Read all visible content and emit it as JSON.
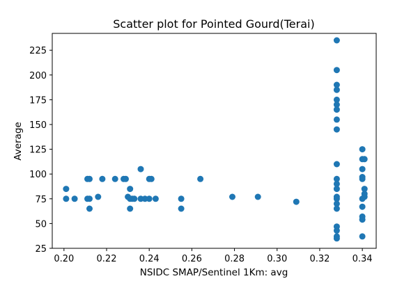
{
  "chart_data": {
    "type": "scatter",
    "title": "Scatter plot for Pointed Gourd(Terai)",
    "xlabel": "NSIDC SMAP/Sentinel 1Km: avg",
    "ylabel": "Average",
    "xlim": [
      0.1945,
      0.3465
    ],
    "ylim": [
      25,
      242
    ],
    "xticks": [
      "0.20",
      "0.22",
      "0.24",
      "0.26",
      "0.28",
      "0.30",
      "0.32",
      "0.34"
    ],
    "xtick_values": [
      0.2,
      0.22,
      0.24,
      0.26,
      0.28,
      0.3,
      0.32,
      0.34
    ],
    "yticks": [
      "25",
      "50",
      "75",
      "100",
      "125",
      "150",
      "175",
      "200",
      "225"
    ],
    "ytick_values": [
      25,
      50,
      75,
      100,
      125,
      150,
      175,
      200,
      225
    ],
    "grid": false,
    "marker_color": "#1f77b4",
    "points": [
      {
        "x": 0.201,
        "y": 85
      },
      {
        "x": 0.201,
        "y": 75
      },
      {
        "x": 0.205,
        "y": 75
      },
      {
        "x": 0.211,
        "y": 95
      },
      {
        "x": 0.212,
        "y": 95
      },
      {
        "x": 0.211,
        "y": 75
      },
      {
        "x": 0.212,
        "y": 75
      },
      {
        "x": 0.212,
        "y": 65
      },
      {
        "x": 0.216,
        "y": 77
      },
      {
        "x": 0.218,
        "y": 95
      },
      {
        "x": 0.224,
        "y": 95
      },
      {
        "x": 0.228,
        "y": 95
      },
      {
        "x": 0.229,
        "y": 95
      },
      {
        "x": 0.23,
        "y": 77
      },
      {
        "x": 0.231,
        "y": 85
      },
      {
        "x": 0.231,
        "y": 75
      },
      {
        "x": 0.232,
        "y": 75
      },
      {
        "x": 0.231,
        "y": 65
      },
      {
        "x": 0.233,
        "y": 75
      },
      {
        "x": 0.236,
        "y": 105
      },
      {
        "x": 0.236,
        "y": 75
      },
      {
        "x": 0.238,
        "y": 75
      },
      {
        "x": 0.24,
        "y": 95
      },
      {
        "x": 0.241,
        "y": 95
      },
      {
        "x": 0.24,
        "y": 75
      },
      {
        "x": 0.243,
        "y": 75
      },
      {
        "x": 0.255,
        "y": 75
      },
      {
        "x": 0.255,
        "y": 65
      },
      {
        "x": 0.264,
        "y": 95
      },
      {
        "x": 0.279,
        "y": 77
      },
      {
        "x": 0.291,
        "y": 77
      },
      {
        "x": 0.309,
        "y": 72
      },
      {
        "x": 0.328,
        "y": 235
      },
      {
        "x": 0.328,
        "y": 205
      },
      {
        "x": 0.328,
        "y": 190
      },
      {
        "x": 0.328,
        "y": 185
      },
      {
        "x": 0.328,
        "y": 175
      },
      {
        "x": 0.328,
        "y": 170
      },
      {
        "x": 0.328,
        "y": 165
      },
      {
        "x": 0.328,
        "y": 155
      },
      {
        "x": 0.328,
        "y": 145
      },
      {
        "x": 0.328,
        "y": 110
      },
      {
        "x": 0.328,
        "y": 95
      },
      {
        "x": 0.328,
        "y": 90
      },
      {
        "x": 0.328,
        "y": 85
      },
      {
        "x": 0.328,
        "y": 77
      },
      {
        "x": 0.328,
        "y": 75
      },
      {
        "x": 0.328,
        "y": 70
      },
      {
        "x": 0.328,
        "y": 65
      },
      {
        "x": 0.328,
        "y": 47
      },
      {
        "x": 0.328,
        "y": 43
      },
      {
        "x": 0.328,
        "y": 37
      },
      {
        "x": 0.328,
        "y": 35
      },
      {
        "x": 0.34,
        "y": 125
      },
      {
        "x": 0.34,
        "y": 115
      },
      {
        "x": 0.341,
        "y": 115
      },
      {
        "x": 0.34,
        "y": 105
      },
      {
        "x": 0.34,
        "y": 97
      },
      {
        "x": 0.34,
        "y": 95
      },
      {
        "x": 0.341,
        "y": 85
      },
      {
        "x": 0.341,
        "y": 80
      },
      {
        "x": 0.341,
        "y": 77
      },
      {
        "x": 0.34,
        "y": 75
      },
      {
        "x": 0.34,
        "y": 67
      },
      {
        "x": 0.34,
        "y": 57
      },
      {
        "x": 0.34,
        "y": 54
      },
      {
        "x": 0.34,
        "y": 37
      }
    ]
  }
}
